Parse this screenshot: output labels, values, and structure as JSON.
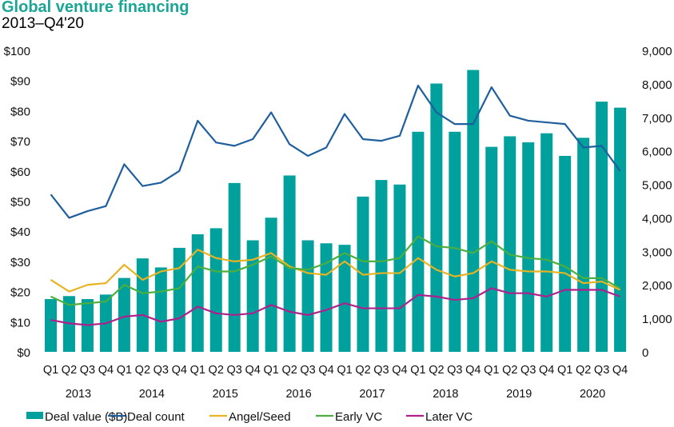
{
  "chart_data": {
    "type": "bar+line",
    "title": "Global venture financing",
    "subtitle": "2013–Q4'20",
    "categories": [
      "Q1",
      "Q2",
      "Q3",
      "Q4",
      "Q1",
      "Q2",
      "Q3",
      "Q4",
      "Q1",
      "Q2",
      "Q3",
      "Q4",
      "Q1",
      "Q2",
      "Q3",
      "Q4",
      "Q1",
      "Q2",
      "Q3",
      "Q4",
      "Q1",
      "Q2",
      "Q3",
      "Q4",
      "Q1",
      "Q2",
      "Q3",
      "Q4",
      "Q1",
      "Q2",
      "Q3",
      "Q4"
    ],
    "years": [
      "2013",
      "2014",
      "2015",
      "2016",
      "2017",
      "2018",
      "2019",
      "2020"
    ],
    "left_axis": {
      "ylim": [
        0,
        100
      ],
      "ticks": [
        "$0",
        "$10",
        "$20",
        "$30",
        "$40",
        "$50",
        "$60",
        "$70",
        "$80",
        "$90",
        "$100"
      ]
    },
    "right_axis": {
      "ylim": [
        0,
        9000
      ],
      "ticks": [
        "0",
        "1,000",
        "2,000",
        "3,000",
        "4,000",
        "5,000",
        "6,000",
        "7,000",
        "8,000",
        "9,000"
      ]
    },
    "grid": false,
    "legend_position": "bottom",
    "series": [
      {
        "name": "Deal value ($B)",
        "type": "bar",
        "axis": "left",
        "color": "#00a19c",
        "values": [
          17.5,
          18.5,
          17.5,
          19,
          24.5,
          31,
          28,
          34.5,
          39,
          41,
          56,
          37,
          44.5,
          58.5,
          37,
          36,
          35.5,
          51.5,
          57,
          55.5,
          73,
          89,
          73,
          93.5,
          68,
          71.5,
          69.5,
          72.5,
          65,
          71,
          83,
          81
        ]
      },
      {
        "name": "Deal count",
        "type": "line",
        "axis": "right",
        "color": "#1f5f9e",
        "values": [
          4700,
          4000,
          4200,
          4350,
          5600,
          4950,
          5050,
          5400,
          6900,
          6250,
          6150,
          6350,
          7150,
          6200,
          5850,
          6100,
          7100,
          6350,
          6300,
          6450,
          7950,
          7150,
          6800,
          6800,
          7900,
          7050,
          6900,
          6850,
          6800,
          6100,
          6150,
          5400
        ]
      },
      {
        "name": "Angel/Seed",
        "type": "line",
        "axis": "right",
        "color": "#e8b323",
        "values": [
          2150,
          1800,
          2000,
          2050,
          2600,
          2150,
          2400,
          2500,
          3050,
          2800,
          2700,
          2750,
          2950,
          2550,
          2350,
          2300,
          2700,
          2300,
          2350,
          2350,
          2800,
          2450,
          2250,
          2350,
          2700,
          2450,
          2400,
          2400,
          2350,
          2050,
          2100,
          1850
        ]
      },
      {
        "name": "Early VC",
        "type": "line",
        "axis": "right",
        "color": "#4cae3f",
        "values": [
          1650,
          1400,
          1450,
          1500,
          2000,
          1750,
          1800,
          1900,
          2550,
          2400,
          2400,
          2600,
          2850,
          2500,
          2450,
          2650,
          2950,
          2700,
          2700,
          2800,
          3450,
          3150,
          3100,
          2950,
          3300,
          2900,
          2800,
          2750,
          2550,
          2200,
          2200,
          1900
        ]
      },
      {
        "name": "Later VC",
        "type": "line",
        "axis": "right",
        "color": "#b0208c",
        "values": [
          950,
          850,
          800,
          850,
          1050,
          1100,
          900,
          1000,
          1350,
          1150,
          1100,
          1150,
          1400,
          1200,
          1100,
          1250,
          1450,
          1300,
          1300,
          1300,
          1700,
          1650,
          1550,
          1600,
          1900,
          1750,
          1750,
          1650,
          1850,
          1850,
          1850,
          1650
        ]
      }
    ]
  }
}
